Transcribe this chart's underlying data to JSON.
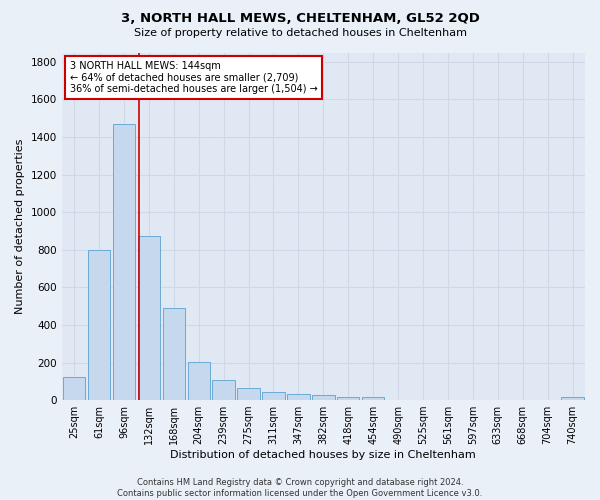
{
  "title": "3, NORTH HALL MEWS, CHELTENHAM, GL52 2QD",
  "subtitle": "Size of property relative to detached houses in Cheltenham",
  "xlabel": "Distribution of detached houses by size in Cheltenham",
  "ylabel": "Number of detached properties",
  "footer_line1": "Contains HM Land Registry data © Crown copyright and database right 2024.",
  "footer_line2": "Contains public sector information licensed under the Open Government Licence v3.0.",
  "bar_labels": [
    "25sqm",
    "61sqm",
    "96sqm",
    "132sqm",
    "168sqm",
    "204sqm",
    "239sqm",
    "275sqm",
    "311sqm",
    "347sqm",
    "382sqm",
    "418sqm",
    "454sqm",
    "490sqm",
    "525sqm",
    "561sqm",
    "597sqm",
    "633sqm",
    "668sqm",
    "704sqm",
    "740sqm"
  ],
  "bar_values": [
    125,
    800,
    1470,
    875,
    490,
    205,
    105,
    65,
    45,
    35,
    25,
    18,
    18,
    0,
    0,
    0,
    0,
    0,
    0,
    0,
    15
  ],
  "bar_color": "#c5d8ed",
  "bar_edge_color": "#6aaad4",
  "annotation_text": "3 NORTH HALL MEWS: 144sqm\n← 64% of detached houses are smaller (2,709)\n36% of semi-detached houses are larger (1,504) →",
  "annotation_box_facecolor": "#ffffff",
  "annotation_box_edgecolor": "#cc0000",
  "vline_x": 2.62,
  "vline_color": "#cc0000",
  "ylim_max": 1850,
  "yticks": [
    0,
    200,
    400,
    600,
    800,
    1000,
    1200,
    1400,
    1600,
    1800
  ],
  "grid_color": "#d0d8e8",
  "bg_color": "#eaf0f8",
  "plot_bg_color": "#e0e8f4"
}
